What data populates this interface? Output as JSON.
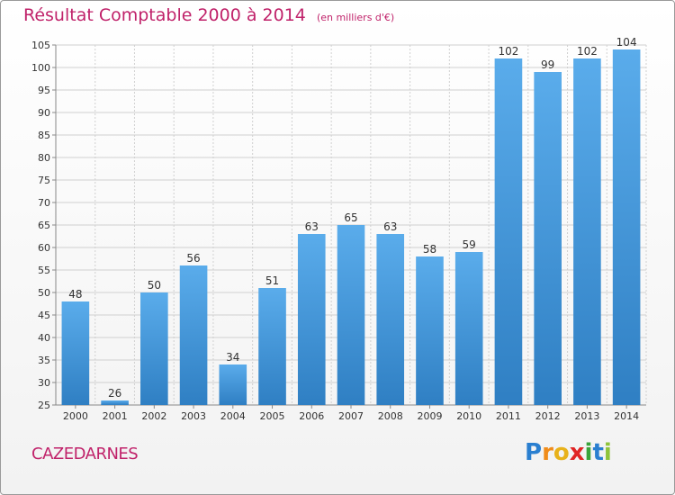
{
  "header": {
    "title": "Résultat Comptable 2000 à 2014",
    "subtitle": "(en milliers d'€)"
  },
  "footer": {
    "commune": "CAZEDARNES",
    "logo_letters": [
      "P",
      "r",
      "o",
      "x",
      "i",
      "t",
      "i"
    ],
    "logo_colors": [
      "#2a7fd0",
      "#f08c1a",
      "#e8b21a",
      "#e02424",
      "#3aa33a",
      "#2a7fd0",
      "#8fc43a"
    ]
  },
  "colors": {
    "bar_top": "#5aaceb",
    "bar_bottom": "#2f7fc3",
    "grid": "#d0d0d0",
    "text": "#333333",
    "accent": "#c0226a"
  },
  "chart_data": {
    "type": "bar",
    "title": "Résultat Comptable 2000 à 2014",
    "subtitle": "(en milliers d'€)",
    "xlabel": "",
    "ylabel": "",
    "categories": [
      "2000",
      "2001",
      "2002",
      "2003",
      "2004",
      "2005",
      "2006",
      "2007",
      "2008",
      "2009",
      "2010",
      "2011",
      "2012",
      "2013",
      "2014"
    ],
    "values": [
      48,
      26,
      50,
      56,
      34,
      51,
      63,
      65,
      63,
      58,
      59,
      102,
      99,
      102,
      104
    ],
    "ylim": [
      25,
      105
    ],
    "yticks": [
      25,
      30,
      35,
      40,
      45,
      50,
      55,
      60,
      65,
      70,
      75,
      80,
      85,
      90,
      95,
      100,
      105
    ],
    "grid": true,
    "legend": "none"
  }
}
